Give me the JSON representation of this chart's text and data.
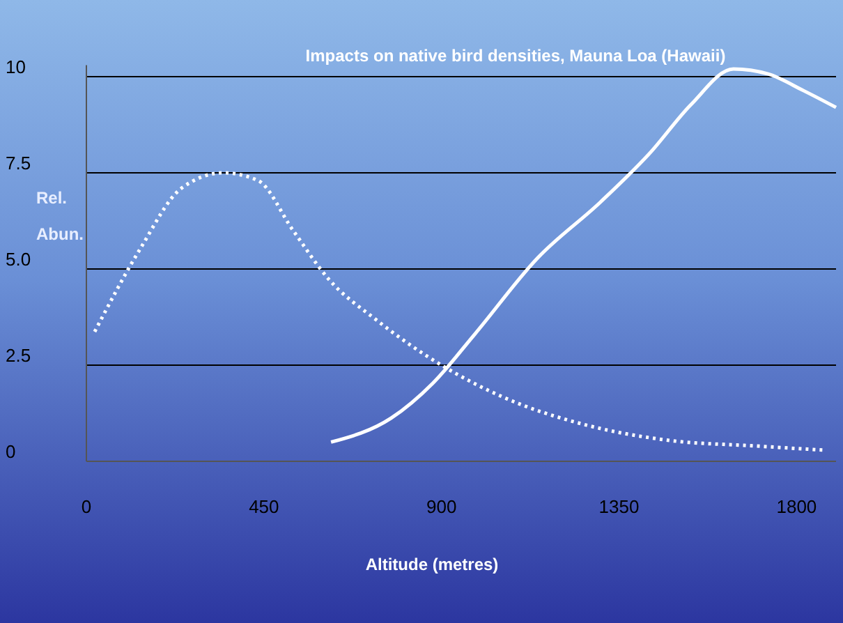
{
  "chart_data": {
    "type": "line",
    "title": "Impacts on native bird densities, Mauna Loa (Hawaii)",
    "xlabel": "Altitude (metres)",
    "ylabel": "Rel. Abun.",
    "xlim": [
      0,
      1900
    ],
    "xticks": [
      0,
      450,
      900,
      1350,
      1800
    ],
    "ylim": [
      0,
      10.3
    ],
    "yticks": [
      {
        "value": 0,
        "label": "0"
      },
      {
        "value": 2.5,
        "label": "2.5"
      },
      {
        "value": 5,
        "label": "5.0"
      },
      {
        "value": 7.5,
        "label": "7.5"
      },
      {
        "value": 10,
        "label": "10"
      }
    ],
    "grid": "y",
    "series": [
      {
        "color": "#ffffff",
        "line_style": "dotted",
        "x": [
          21,
          135,
          241,
          347,
          435,
          524,
          613,
          737,
          900,
          1056,
          1268,
          1481,
          1694,
          1871
        ],
        "values": [
          3.37,
          5.5,
          7.1,
          7.5,
          7.3,
          6.0,
          4.75,
          3.66,
          2.5,
          1.67,
          0.94,
          0.54,
          0.4,
          0.29
        ]
      },
      {
        "color": "#ffffff",
        "line_style": "solid",
        "x": [
          620,
          772,
          878,
          984,
          1144,
          1303,
          1427,
          1533,
          1640,
          1728,
          1817,
          1900
        ],
        "values": [
          0.5,
          1.12,
          2.03,
          3.3,
          5.29,
          6.74,
          8.0,
          9.28,
          10.2,
          10.07,
          9.64,
          9.2
        ]
      }
    ]
  }
}
